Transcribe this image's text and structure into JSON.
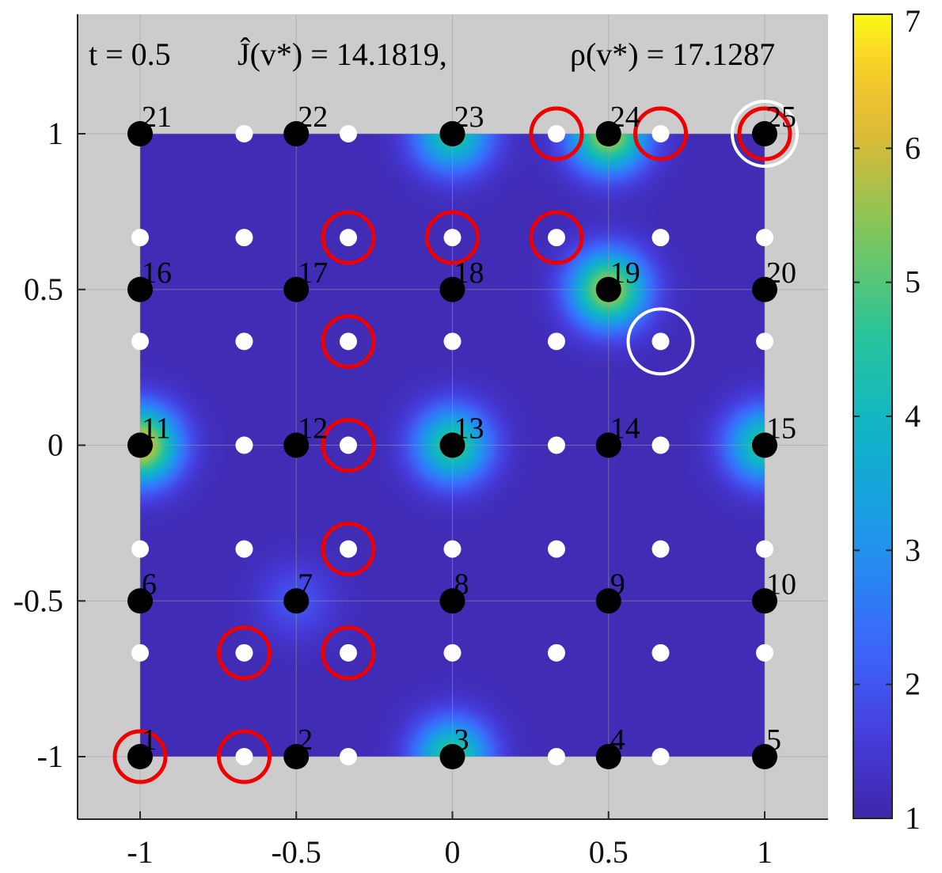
{
  "chart_data": {
    "type": "heatmap",
    "title": {
      "t_part": "t = 0.5",
      "J_part": "Ĵ(v*) = 14.1819,",
      "rho_part": "ρ(v*) = 17.1287"
    },
    "xlabel": "",
    "ylabel": "",
    "xlim": [
      -1.2,
      1.2
    ],
    "ylim": [
      -1.2,
      1.35
    ],
    "x_ticks": [
      -1,
      -0.5,
      0,
      0.5,
      1
    ],
    "x_tick_labels": [
      "-1",
      "-0.5",
      "0",
      "0.5",
      "1"
    ],
    "y_ticks": [
      -1,
      -0.5,
      0,
      0.5,
      1
    ],
    "y_tick_labels": [
      "-1",
      "-0.5",
      "0",
      "0.5",
      "1"
    ],
    "grid": true,
    "field_domain": [
      [
        -1,
        1
      ],
      [
        -1,
        1
      ]
    ],
    "colormap": "parula",
    "clim": [
      1,
      7
    ],
    "colorbar_ticks": [
      1,
      2,
      3,
      4,
      5,
      6,
      7
    ],
    "colorbar_tick_labels": [
      "1",
      "2",
      "3",
      "4",
      "5",
      "6",
      "7"
    ],
    "background_color": "#cccccc",
    "field_peaks": [
      {
        "x": -1.0,
        "y": 0.0,
        "value": 6.3
      },
      {
        "x": 0.0,
        "y": 0.0,
        "value": 4.7
      },
      {
        "x": 1.0,
        "y": 0.0,
        "value": 4.6
      },
      {
        "x": 0.0,
        "y": 1.0,
        "value": 4.5
      },
      {
        "x": 0.5,
        "y": 1.0,
        "value": 5.8
      },
      {
        "x": 0.5,
        "y": 0.5,
        "value": 5.8
      },
      {
        "x": 0.0,
        "y": -1.0,
        "value": 4.7
      },
      {
        "x": -0.5,
        "y": -0.5,
        "value": 2.0
      }
    ],
    "large_nodes": [
      {
        "label": "1",
        "x": -1,
        "y": -1
      },
      {
        "label": "2",
        "x": -0.5,
        "y": -1
      },
      {
        "label": "3",
        "x": 0,
        "y": -1
      },
      {
        "label": "4",
        "x": 0.5,
        "y": -1
      },
      {
        "label": "5",
        "x": 1,
        "y": -1
      },
      {
        "label": "6",
        "x": -1,
        "y": -0.5
      },
      {
        "label": "7",
        "x": -0.5,
        "y": -0.5
      },
      {
        "label": "8",
        "x": 0,
        "y": -0.5
      },
      {
        "label": "9",
        "x": 0.5,
        "y": -0.5
      },
      {
        "label": "10",
        "x": 1,
        "y": -0.5
      },
      {
        "label": "11",
        "x": -1,
        "y": 0
      },
      {
        "label": "12",
        "x": -0.5,
        "y": 0
      },
      {
        "label": "13",
        "x": 0,
        "y": 0
      },
      {
        "label": "14",
        "x": 0.5,
        "y": 0
      },
      {
        "label": "15",
        "x": 1,
        "y": 0
      },
      {
        "label": "16",
        "x": -1,
        "y": 0.5
      },
      {
        "label": "17",
        "x": -0.5,
        "y": 0.5
      },
      {
        "label": "18",
        "x": 0,
        "y": 0.5
      },
      {
        "label": "19",
        "x": 0.5,
        "y": 0.5
      },
      {
        "label": "20",
        "x": 1,
        "y": 0.5
      },
      {
        "label": "21",
        "x": -1,
        "y": 1
      },
      {
        "label": "22",
        "x": -0.5,
        "y": 1
      },
      {
        "label": "23",
        "x": 0,
        "y": 1
      },
      {
        "label": "24",
        "x": 0.5,
        "y": 1
      },
      {
        "label": "25",
        "x": 1,
        "y": 1
      }
    ],
    "small_grid": [
      -1,
      -0.6667,
      -0.3333,
      0,
      0.3333,
      0.6667,
      1
    ],
    "red_circles": [
      {
        "x": -1,
        "y": -1
      },
      {
        "x": -0.6667,
        "y": -1
      },
      {
        "x": -0.6667,
        "y": -0.6667
      },
      {
        "x": -0.3333,
        "y": -0.6667
      },
      {
        "x": -0.3333,
        "y": -0.3333
      },
      {
        "x": -0.3333,
        "y": 0
      },
      {
        "x": -0.3333,
        "y": 0.3333
      },
      {
        "x": -0.3333,
        "y": 0.6667
      },
      {
        "x": 0,
        "y": 0.6667
      },
      {
        "x": 0.3333,
        "y": 0.6667
      },
      {
        "x": 0.3333,
        "y": 1
      },
      {
        "x": 0.6667,
        "y": 1
      },
      {
        "x": 1,
        "y": 1
      }
    ],
    "white_circles": [
      {
        "x": 1,
        "y": 1
      },
      {
        "x": 0.6667,
        "y": 0.3333
      }
    ],
    "colors": {
      "large_node": "#000000",
      "small_node": "#ffffff",
      "red_ring": "#ee0000",
      "white_ring": "#ffffff"
    }
  }
}
